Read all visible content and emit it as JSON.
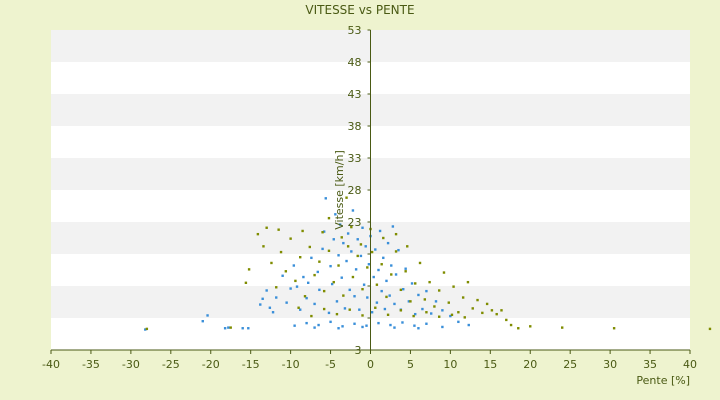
{
  "chart_data": {
    "type": "scatter",
    "title": "VITESSE vs PENTE",
    "xlabel": "Pente [%]",
    "ylabel": "Vitesse [km/h]",
    "xlim": [
      -40,
      40
    ],
    "ylim": [
      3,
      53
    ],
    "x_ticks": [
      -40,
      -35,
      -30,
      -25,
      -20,
      -15,
      -10,
      -5,
      0,
      5,
      10,
      15,
      20,
      25,
      30,
      35,
      40
    ],
    "y_ticks": [
      3,
      8,
      13,
      18,
      23,
      28,
      33,
      38,
      43,
      48,
      53
    ],
    "y_tick_labels": [
      "3",
      "",
      "",
      "",
      "23",
      "28",
      "33",
      "38",
      "43",
      "48",
      "53"
    ],
    "grid": "horizontal alternating bands",
    "colors": {
      "background": "#eef3cf",
      "plot_band_light": "#ffffff",
      "plot_band_dark": "#f2f2f2",
      "axis": "#4a5a14",
      "series_blue": "#3a8fd9",
      "series_olive": "#7f8c00"
    },
    "series": [
      {
        "color": "#3a8fd9",
        "points": [
          [
            -28.2,
            6.2
          ],
          [
            -21,
            7.5
          ],
          [
            -20.4,
            8.4
          ],
          [
            -18.2,
            6.4
          ],
          [
            -17.8,
            6.5
          ],
          [
            -16,
            6.4
          ],
          [
            -15.3,
            6.4
          ],
          [
            -13.8,
            10.1
          ],
          [
            -13.5,
            11
          ],
          [
            -13,
            12.3
          ],
          [
            -12.6,
            9.6
          ],
          [
            -12.2,
            8.9
          ],
          [
            -11.8,
            11.2
          ],
          [
            -11,
            14.6
          ],
          [
            -10.5,
            10.4
          ],
          [
            -10,
            12.6
          ],
          [
            -9.6,
            16.2
          ],
          [
            -9.2,
            12.9
          ],
          [
            -8.8,
            9.3
          ],
          [
            -8.4,
            14.4
          ],
          [
            -8,
            11.1
          ],
          [
            -7.8,
            13.5
          ],
          [
            -7.4,
            17.4
          ],
          [
            -7,
            10.2
          ],
          [
            -6.6,
            15.2
          ],
          [
            -6.4,
            12.4
          ],
          [
            -6,
            18.8
          ],
          [
            -5.8,
            21.5
          ],
          [
            -5.6,
            26.7
          ],
          [
            -5.2,
            8.8
          ],
          [
            -5,
            16.1
          ],
          [
            -4.8,
            13.3
          ],
          [
            -4.6,
            20.3
          ],
          [
            -4.4,
            24.2
          ],
          [
            -4.2,
            10.6
          ],
          [
            -4,
            17.8
          ],
          [
            -3.8,
            22.6
          ],
          [
            -3.6,
            14.3
          ],
          [
            -3.4,
            19.7
          ],
          [
            -3.2,
            9.5
          ],
          [
            -3,
            16.9
          ],
          [
            -2.8,
            21.2
          ],
          [
            -2.6,
            12.4
          ],
          [
            -2.4,
            18.4
          ],
          [
            -2.2,
            24.8
          ],
          [
            -2,
            11.4
          ],
          [
            -1.8,
            15.6
          ],
          [
            -1.6,
            20.3
          ],
          [
            -1.4,
            9.3
          ],
          [
            -1.2,
            17.7
          ],
          [
            -1,
            22.1
          ],
          [
            -0.8,
            13.2
          ],
          [
            -0.6,
            19.2
          ],
          [
            -0.4,
            11.2
          ],
          [
            -0.2,
            16.4
          ],
          [
            0,
            20.8
          ],
          [
            0.2,
            8.9
          ],
          [
            0.4,
            14.4
          ],
          [
            0.6,
            18.7
          ],
          [
            0.8,
            10.4
          ],
          [
            1,
            15.5
          ],
          [
            1.2,
            21.6
          ],
          [
            1.4,
            12.2
          ],
          [
            1.6,
            17.4
          ],
          [
            1.8,
            9.4
          ],
          [
            2,
            13.8
          ],
          [
            2.2,
            19.7
          ],
          [
            2.4,
            11.5
          ],
          [
            2.6,
            16.2
          ],
          [
            2.8,
            22.3
          ],
          [
            3,
            10.2
          ],
          [
            3.2,
            14.8
          ],
          [
            3.5,
            18.6
          ],
          [
            3.8,
            9.3
          ],
          [
            4.1,
            12.5
          ],
          [
            4.4,
            15.7
          ],
          [
            4.8,
            10.6
          ],
          [
            5.2,
            13.4
          ],
          [
            5.6,
            8.6
          ],
          [
            6,
            11.6
          ],
          [
            6.5,
            9.4
          ],
          [
            7,
            12.2
          ],
          [
            7.6,
            8.7
          ],
          [
            8.2,
            10.6
          ],
          [
            9,
            9.2
          ],
          [
            10,
            8.3
          ],
          [
            11,
            7.4
          ],
          [
            12.3,
            6.9
          ],
          [
            -9.5,
            6.8
          ],
          [
            -8,
            7.2
          ],
          [
            -6.5,
            6.9
          ],
          [
            -5,
            7.4
          ],
          [
            -3.5,
            6.7
          ],
          [
            -2,
            7.1
          ],
          [
            -0.5,
            6.8
          ],
          [
            1,
            7.2
          ],
          [
            2.5,
            6.9
          ],
          [
            4,
            7.3
          ],
          [
            5.5,
            6.8
          ],
          [
            7,
            7.1
          ],
          [
            -7,
            6.5
          ],
          [
            -4,
            6.4
          ],
          [
            -1,
            6.6
          ],
          [
            3,
            6.5
          ],
          [
            6,
            6.4
          ],
          [
            9,
            6.6
          ]
        ]
      },
      {
        "color": "#7f8c00",
        "points": [
          [
            -28,
            6.3
          ],
          [
            -17.5,
            6.5
          ],
          [
            -15.6,
            13.5
          ],
          [
            -15.2,
            15.6
          ],
          [
            -14.1,
            21.1
          ],
          [
            -13.4,
            19.2
          ],
          [
            -13,
            22.1
          ],
          [
            -12.4,
            16.6
          ],
          [
            -11.8,
            12.8
          ],
          [
            -11.2,
            18.3
          ],
          [
            -10.6,
            15.3
          ],
          [
            -10,
            20.4
          ],
          [
            -9.4,
            13.8
          ],
          [
            -8.8,
            17.5
          ],
          [
            -8.2,
            11.4
          ],
          [
            -7.6,
            19.1
          ],
          [
            -7,
            14.7
          ],
          [
            -6.4,
            16.8
          ],
          [
            -5.8,
            12.2
          ],
          [
            -5.2,
            18.5
          ],
          [
            -4.6,
            13.6
          ],
          [
            -4,
            16.2
          ],
          [
            -3.4,
            11.5
          ],
          [
            -2.8,
            19.2
          ],
          [
            -2.2,
            14.4
          ],
          [
            -1.6,
            17.7
          ],
          [
            -1,
            12.5
          ],
          [
            -0.4,
            15.9
          ],
          [
            0.2,
            18.3
          ],
          [
            0.8,
            13.2
          ],
          [
            1.4,
            16.4
          ],
          [
            2,
            11.3
          ],
          [
            2.6,
            14.8
          ],
          [
            3.2,
            18.4
          ],
          [
            3.8,
            12.4
          ],
          [
            4.4,
            15.3
          ],
          [
            5,
            10.6
          ],
          [
            5.6,
            13.4
          ],
          [
            6.2,
            16.6
          ],
          [
            6.8,
            10.9
          ],
          [
            7.4,
            13.6
          ],
          [
            8,
            9.8
          ],
          [
            8.6,
            12.3
          ],
          [
            9.2,
            15.1
          ],
          [
            9.8,
            10.4
          ],
          [
            10.4,
            12.9
          ],
          [
            11,
            8.9
          ],
          [
            11.6,
            11.2
          ],
          [
            12.2,
            13.6
          ],
          [
            12.8,
            9.5
          ],
          [
            13.4,
            10.8
          ],
          [
            14,
            8.8
          ],
          [
            14.6,
            10.2
          ],
          [
            15.2,
            9.2
          ],
          [
            15.8,
            8.6
          ],
          [
            16.4,
            9.2
          ],
          [
            17,
            7.7
          ],
          [
            17.6,
            6.9
          ],
          [
            18.5,
            6.4
          ],
          [
            20,
            6.7
          ],
          [
            24,
            6.5
          ],
          [
            30.5,
            6.4
          ],
          [
            42.5,
            6.3
          ],
          [
            -6,
            21.4
          ],
          [
            -5.2,
            23.6
          ],
          [
            -3.6,
            20.6
          ],
          [
            -2.4,
            22.2
          ],
          [
            -1.2,
            19.5
          ],
          [
            0,
            21.9
          ],
          [
            1.6,
            20.5
          ],
          [
            3.2,
            21.1
          ],
          [
            4.6,
            19.2
          ],
          [
            -9,
            9.6
          ],
          [
            -7.4,
            8.3
          ],
          [
            -5.8,
            9.4
          ],
          [
            -4.2,
            8.6
          ],
          [
            -2.6,
            9.3
          ],
          [
            -1,
            8.4
          ],
          [
            0.6,
            9.6
          ],
          [
            2.2,
            8.5
          ],
          [
            3.8,
            9.2
          ],
          [
            5.4,
            8.3
          ],
          [
            7,
            8.9
          ],
          [
            8.6,
            8.2
          ],
          [
            10.2,
            8.5
          ],
          [
            11.8,
            8.1
          ],
          [
            -3,
            26.8
          ],
          [
            -8.5,
            21.6
          ],
          [
            -11.5,
            21.8
          ]
        ]
      }
    ]
  }
}
